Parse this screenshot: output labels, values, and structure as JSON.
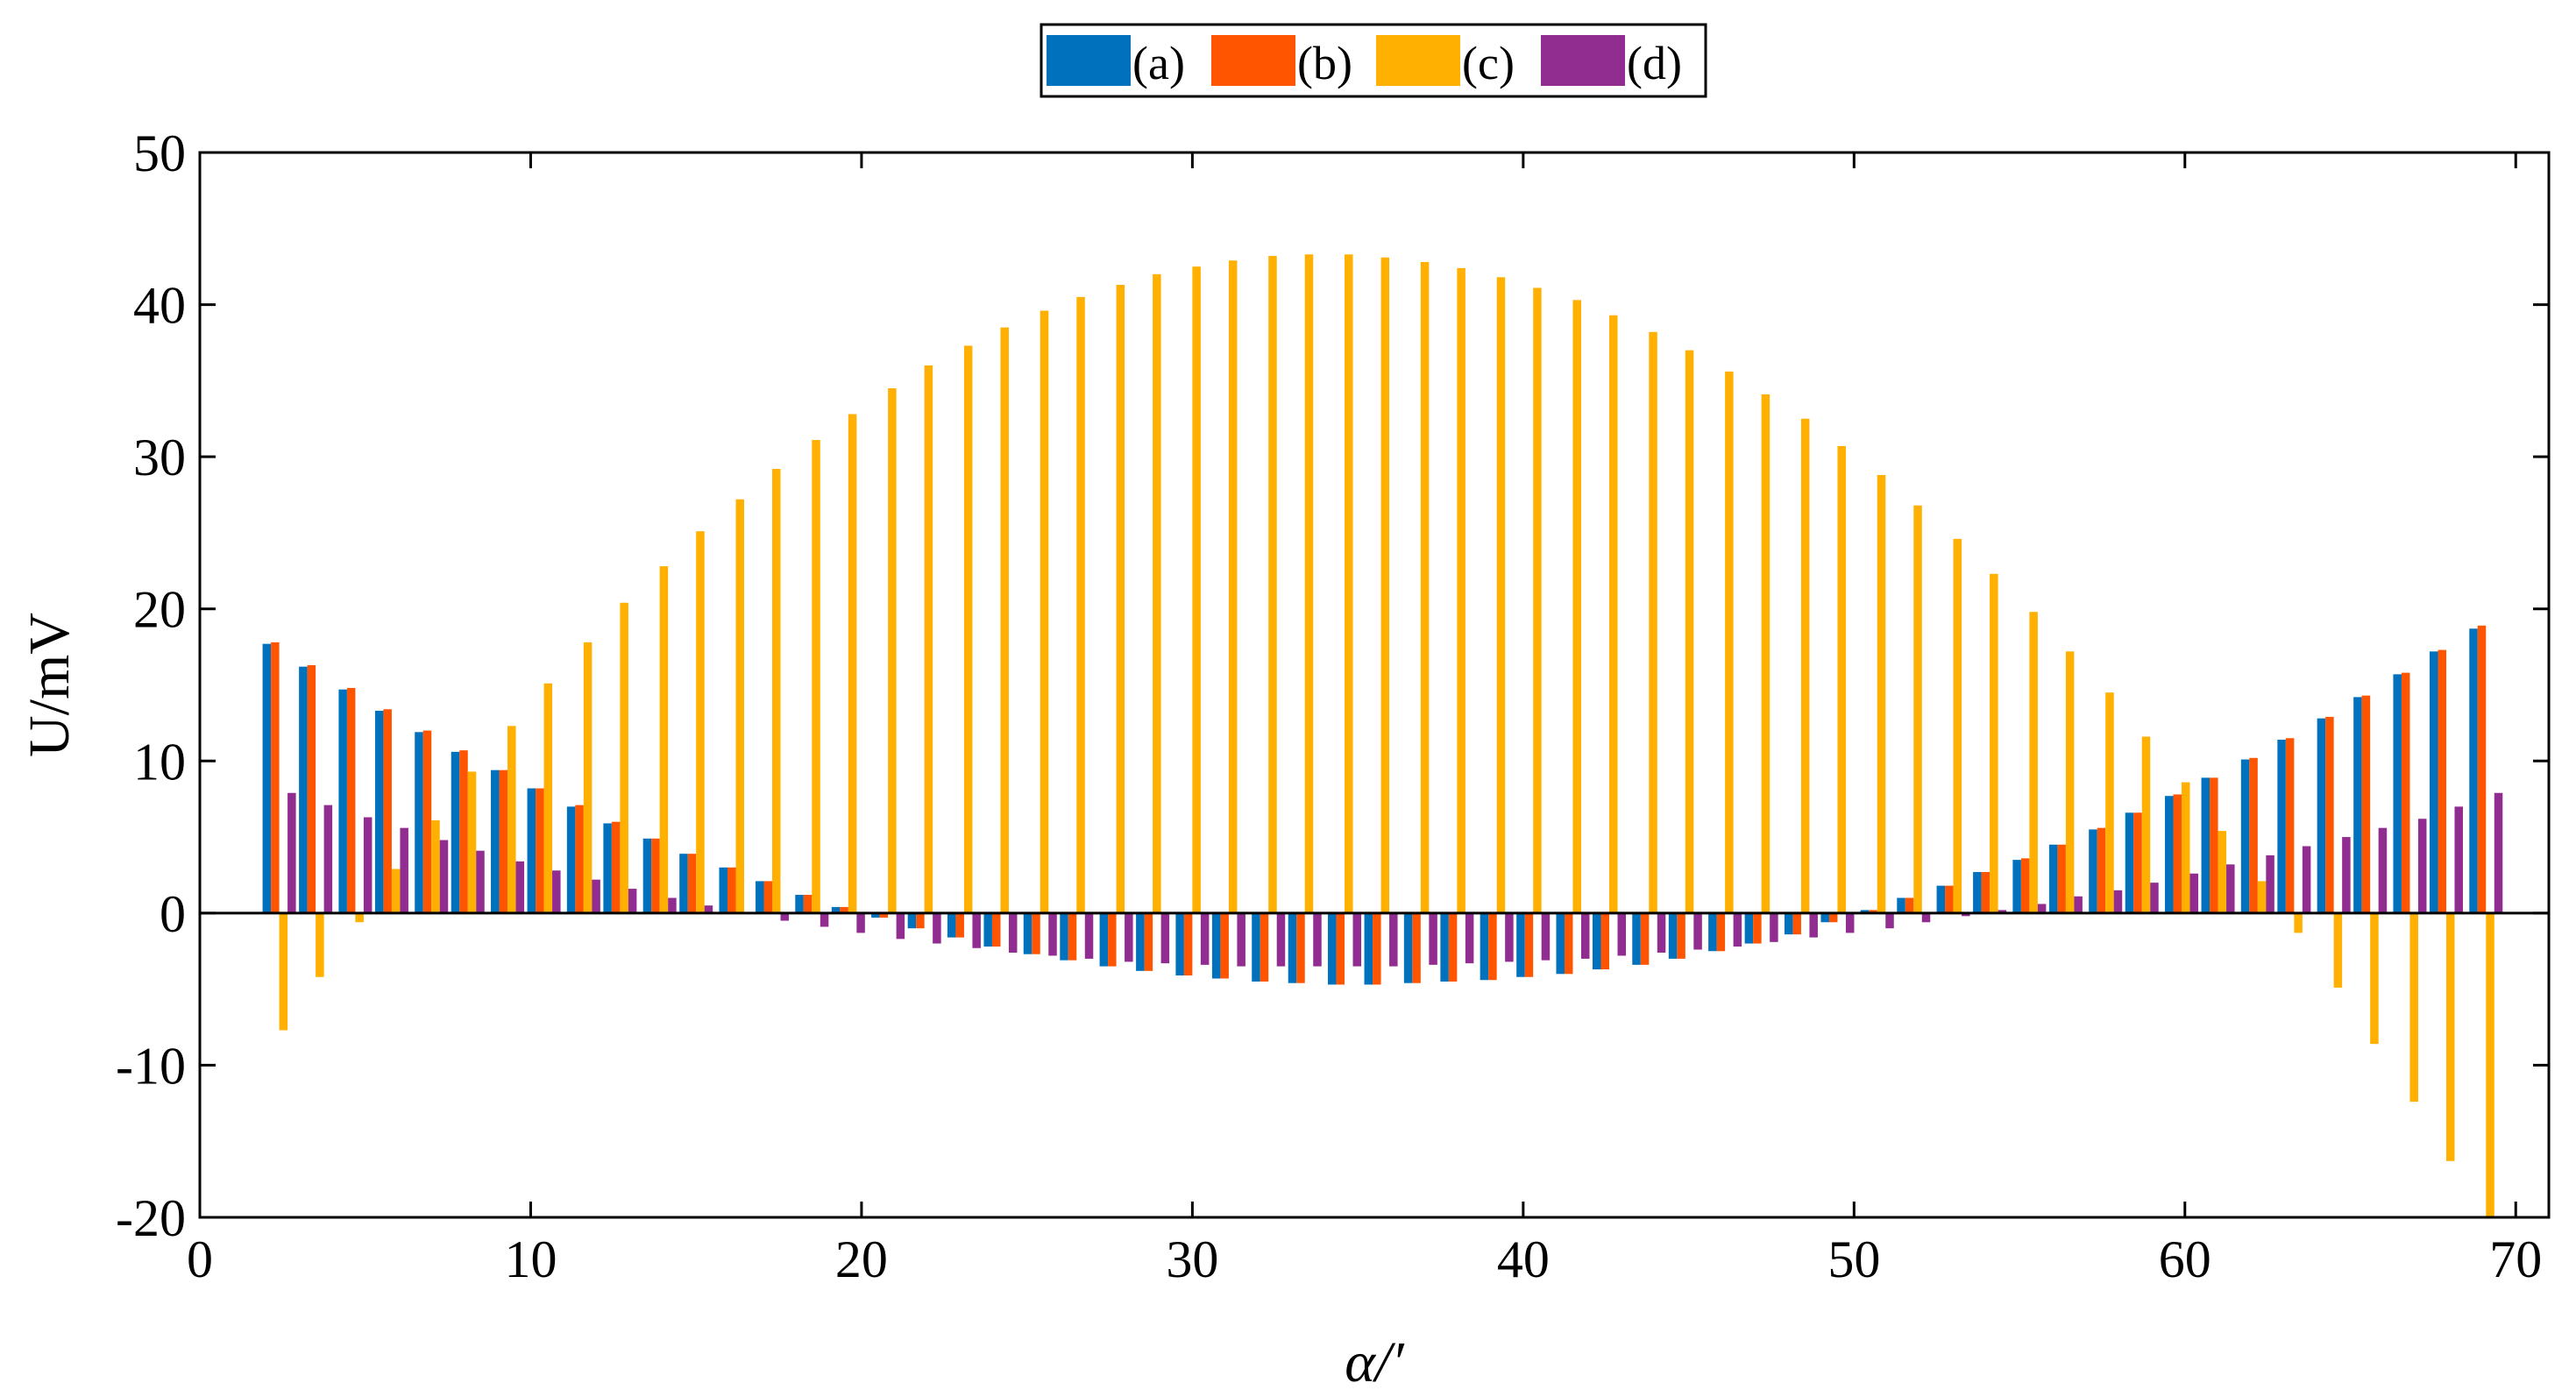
{
  "chart_data": {
    "type": "bar",
    "xlabel": "α/′",
    "ylabel": "U/mV",
    "xlim": [
      0,
      71
    ],
    "ylim": [
      -20,
      50
    ],
    "grid": false,
    "legend_position": "top-center",
    "x_ticks": [
      "0",
      "10",
      "20",
      "30",
      "40",
      "50",
      "60",
      "70"
    ],
    "y_ticks": [
      "-20",
      "-10",
      "0",
      "10",
      "20",
      "30",
      "40",
      "50"
    ],
    "x": [
      2.4,
      3.5,
      4.7,
      5.8,
      7.0,
      8.1,
      9.3,
      10.4,
      11.6,
      12.7,
      13.9,
      15.0,
      16.2,
      17.3,
      18.5,
      19.6,
      20.8,
      21.9,
      23.1,
      24.2,
      25.4,
      26.5,
      27.7,
      28.8,
      30.0,
      31.1,
      32.3,
      33.4,
      34.6,
      35.7,
      36.9,
      38.0,
      39.2,
      40.3,
      41.5,
      42.6,
      43.8,
      44.9,
      46.1,
      47.2,
      48.4,
      49.5,
      50.7,
      51.8,
      53.0,
      54.1,
      55.3,
      56.4,
      57.6,
      58.7,
      59.9,
      61.0,
      62.2,
      63.3,
      64.5,
      65.6,
      66.8,
      67.9,
      69.1
    ],
    "series": [
      {
        "name": "(a)",
        "color": "#0072BD",
        "values": [
          17.7,
          16.2,
          14.7,
          13.3,
          11.9,
          10.6,
          9.4,
          8.2,
          7.0,
          5.9,
          4.9,
          3.9,
          3.0,
          2.1,
          1.2,
          0.4,
          -0.3,
          -1.0,
          -1.6,
          -2.2,
          -2.7,
          -3.1,
          -3.5,
          -3.8,
          -4.1,
          -4.3,
          -4.5,
          -4.6,
          -4.7,
          -4.7,
          -4.6,
          -4.5,
          -4.4,
          -4.2,
          -4.0,
          -3.7,
          -3.4,
          -3.0,
          -2.5,
          -2.0,
          -1.4,
          -0.6,
          0.2,
          1.0,
          1.8,
          2.7,
          3.5,
          4.5,
          5.5,
          6.6,
          7.7,
          8.9,
          10.1,
          11.4,
          12.8,
          14.2,
          15.7,
          17.2,
          18.7
        ]
      },
      {
        "name": "(b)",
        "color": "#FF5500",
        "values": [
          17.8,
          16.3,
          14.8,
          13.4,
          12.0,
          10.7,
          9.4,
          8.2,
          7.1,
          6.0,
          4.9,
          3.9,
          3.0,
          2.1,
          1.2,
          0.4,
          -0.3,
          -1.0,
          -1.6,
          -2.2,
          -2.7,
          -3.1,
          -3.5,
          -3.8,
          -4.1,
          -4.3,
          -4.5,
          -4.6,
          -4.7,
          -4.7,
          -4.6,
          -4.5,
          -4.4,
          -4.2,
          -4.0,
          -3.7,
          -3.4,
          -3.0,
          -2.5,
          -2.0,
          -1.4,
          -0.6,
          0.2,
          1.0,
          1.8,
          2.7,
          3.6,
          4.5,
          5.6,
          6.6,
          7.8,
          8.9,
          10.2,
          11.5,
          12.9,
          14.3,
          15.8,
          17.3,
          18.9
        ]
      },
      {
        "name": "(c)",
        "color": "#FFB000",
        "values": [
          -7.7,
          -4.2,
          -0.6,
          2.9,
          6.1,
          9.3,
          12.3,
          15.1,
          17.8,
          20.4,
          22.8,
          25.1,
          27.2,
          29.2,
          31.1,
          32.8,
          34.5,
          36.0,
          37.3,
          38.5,
          39.6,
          40.5,
          41.3,
          42.0,
          42.5,
          42.9,
          43.2,
          43.3,
          43.3,
          43.1,
          42.8,
          42.4,
          41.8,
          41.1,
          40.3,
          39.3,
          38.2,
          37.0,
          35.6,
          34.1,
          32.5,
          30.7,
          28.8,
          26.8,
          24.6,
          22.3,
          19.8,
          17.2,
          14.5,
          11.6,
          8.6,
          5.4,
          2.1,
          -1.3,
          -4.9,
          -8.6,
          -12.4,
          -16.3,
          -20.0
        ]
      },
      {
        "name": "(d)",
        "color": "#912D91",
        "values": [
          7.9,
          7.1,
          6.3,
          5.6,
          4.8,
          4.1,
          3.4,
          2.8,
          2.2,
          1.6,
          1.0,
          0.5,
          0.0,
          -0.5,
          -0.9,
          -1.3,
          -1.7,
          -2.0,
          -2.3,
          -2.6,
          -2.8,
          -3.0,
          -3.2,
          -3.3,
          -3.4,
          -3.5,
          -3.5,
          -3.5,
          -3.5,
          -3.5,
          -3.4,
          -3.3,
          -3.2,
          -3.1,
          -3.0,
          -2.8,
          -2.6,
          -2.4,
          -2.2,
          -1.9,
          -1.6,
          -1.3,
          -1.0,
          -0.6,
          -0.2,
          0.2,
          0.6,
          1.1,
          1.5,
          2.0,
          2.6,
          3.2,
          3.8,
          4.4,
          5.0,
          5.6,
          6.2,
          7.0,
          7.9
        ]
      }
    ]
  }
}
